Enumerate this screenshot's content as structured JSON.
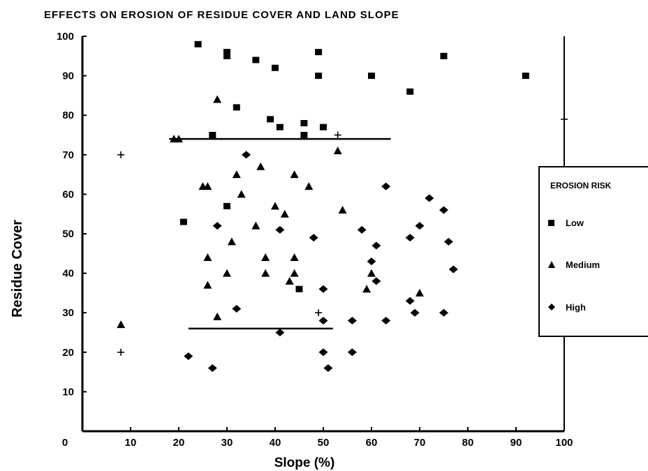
{
  "chart_data": {
    "type": "scatter",
    "title": "EFFECTS ON EROSION OF RESIDUE COVER AND LAND SLOPE",
    "xlabel": "Slope (%)",
    "ylabel": "Residue Cover",
    "xlim": [
      0,
      100
    ],
    "ylim": [
      0,
      100
    ],
    "xticks": [
      "0",
      "10",
      "20",
      "30",
      "40",
      "50",
      "60",
      "70",
      "80",
      "90",
      "100"
    ],
    "yticks": [
      "10",
      "20",
      "30",
      "40",
      "50",
      "60",
      "70",
      "80",
      "90",
      "100"
    ],
    "grid": false,
    "legend": {
      "title": "EROSION RISK",
      "position": "right",
      "entries": [
        "Low",
        "Medium",
        "High"
      ]
    },
    "series": [
      {
        "name": "Low",
        "marker": "square",
        "points": [
          [
            24,
            98
          ],
          [
            30,
            96
          ],
          [
            30,
            95
          ],
          [
            36,
            94
          ],
          [
            40,
            92
          ],
          [
            49,
            96
          ],
          [
            49,
            90
          ],
          [
            60,
            90
          ],
          [
            75,
            95
          ],
          [
            68,
            86
          ],
          [
            92,
            90
          ],
          [
            32,
            82
          ],
          [
            39,
            79
          ],
          [
            41,
            77
          ],
          [
            46,
            78
          ],
          [
            46,
            75
          ],
          [
            50,
            77
          ],
          [
            27,
            75
          ],
          [
            30,
            57
          ],
          [
            21,
            53
          ],
          [
            45,
            36
          ]
        ]
      },
      {
        "name": "Medium",
        "marker": "triangle",
        "points": [
          [
            19,
            74
          ],
          [
            20,
            74
          ],
          [
            28,
            84
          ],
          [
            53,
            71
          ],
          [
            37,
            67
          ],
          [
            32,
            65
          ],
          [
            44,
            65
          ],
          [
            25,
            62
          ],
          [
            26,
            62
          ],
          [
            47,
            62
          ],
          [
            33,
            60
          ],
          [
            40,
            57
          ],
          [
            54,
            56
          ],
          [
            42,
            55
          ],
          [
            36,
            52
          ],
          [
            31,
            48
          ],
          [
            26,
            44
          ],
          [
            38,
            44
          ],
          [
            44,
            44
          ],
          [
            60,
            40
          ],
          [
            30,
            40
          ],
          [
            38,
            40
          ],
          [
            44,
            40
          ],
          [
            26,
            37
          ],
          [
            43,
            38
          ],
          [
            59,
            36
          ],
          [
            70,
            35
          ],
          [
            28,
            29
          ],
          [
            8,
            27
          ]
        ]
      },
      {
        "name": "High",
        "marker": "diamond",
        "points": [
          [
            34,
            70
          ],
          [
            63,
            62
          ],
          [
            72,
            59
          ],
          [
            75,
            56
          ],
          [
            28,
            52
          ],
          [
            41,
            51
          ],
          [
            58,
            51
          ],
          [
            70,
            52
          ],
          [
            48,
            49
          ],
          [
            68,
            49
          ],
          [
            76,
            48
          ],
          [
            61,
            47
          ],
          [
            60,
            43
          ],
          [
            77,
            41
          ],
          [
            61,
            38
          ],
          [
            50,
            36
          ],
          [
            68,
            33
          ],
          [
            32,
            31
          ],
          [
            69,
            30
          ],
          [
            75,
            30
          ],
          [
            50,
            28
          ],
          [
            56,
            28
          ],
          [
            63,
            28
          ],
          [
            41,
            25
          ],
          [
            22,
            19
          ],
          [
            50,
            20
          ],
          [
            56,
            20
          ],
          [
            27,
            16
          ],
          [
            51,
            16
          ]
        ]
      },
      {
        "name": "",
        "marker": "plus",
        "points": [
          [
            8,
            70
          ],
          [
            8,
            20
          ],
          [
            53,
            75
          ],
          [
            49,
            30
          ],
          [
            100,
            79
          ]
        ]
      }
    ],
    "reference_lines": [
      {
        "x": [
          18,
          64
        ],
        "y": 74
      },
      {
        "x": [
          22,
          52
        ],
        "y": 26
      }
    ]
  }
}
